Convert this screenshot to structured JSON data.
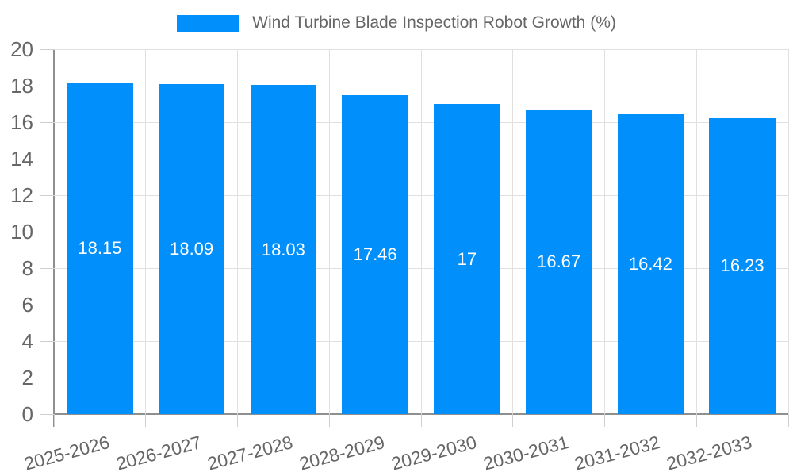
{
  "colors": {
    "bar": "#008FFB",
    "grid": "#e0e0e0",
    "axis": "#8f8f8f",
    "tick": "#cfcfcf",
    "text": "#666666",
    "value_label": "#ffffff",
    "background": "#ffffff"
  },
  "chart_data": {
    "type": "bar",
    "title": "Wind Turbine Blade Inspection Robot Growth (%)",
    "categories": [
      "2025-2026",
      "2026-2027",
      "2027-2028",
      "2028-2029",
      "2029-2030",
      "2030-2031",
      "2031-2032",
      "2032-2033"
    ],
    "values": [
      18.15,
      18.09,
      18.03,
      17.46,
      17,
      16.67,
      16.42,
      16.23
    ],
    "bar_labels": [
      "18.15",
      "18.09",
      "18.03",
      "17.46",
      "17",
      "16.67",
      "16.42",
      "16.23"
    ],
    "xlabel": "",
    "ylabel": "",
    "ylim": [
      0,
      20
    ],
    "ytick_step": 2,
    "ytick_labels": [
      "0",
      "2",
      "4",
      "6",
      "8",
      "10",
      "12",
      "14",
      "16",
      "18",
      "20"
    ],
    "grid": true,
    "legend_position": "top",
    "x_label_rotation_deg": -15
  }
}
